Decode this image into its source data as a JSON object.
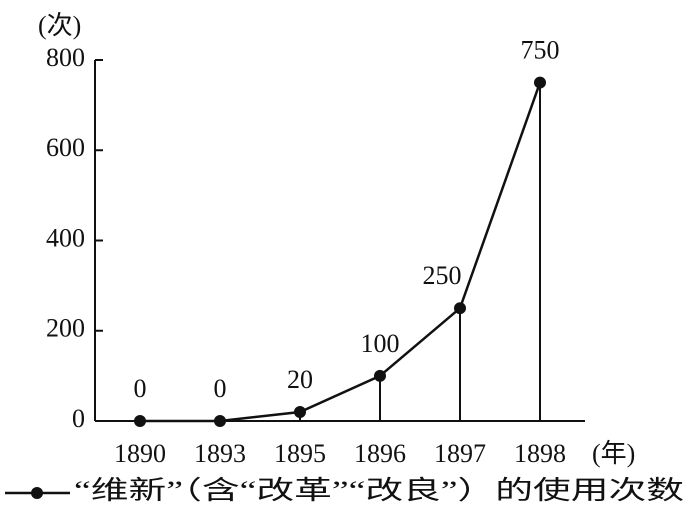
{
  "chart_data": {
    "type": "line",
    "y_label": "(次)",
    "x_label": "(年)",
    "categories": [
      "1890",
      "1893",
      "1895",
      "1896",
      "1897",
      "1898"
    ],
    "series": [
      {
        "name": "“维新”（含“改革”“改良”）的使用次数",
        "color": "#111111",
        "values": [
          0,
          0,
          20,
          100,
          250,
          750
        ]
      }
    ],
    "ylim": [
      0,
      800
    ],
    "yticks": [
      0,
      200,
      400,
      600,
      800
    ],
    "grid": false,
    "drop_lines": true,
    "legend": "bottom-left"
  }
}
